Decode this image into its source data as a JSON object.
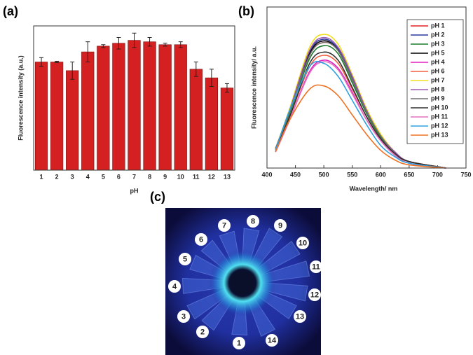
{
  "chart_data": [
    {
      "type": "bar",
      "panel_label": "(a)",
      "xlabel": "pH",
      "ylabel": "Fluorescence intensity (a.u.)",
      "categories": [
        "1",
        "2",
        "3",
        "4",
        "5",
        "6",
        "7",
        "8",
        "9",
        "10",
        "11",
        "12",
        "13"
      ],
      "values": [
        0.75,
        0.75,
        0.69,
        0.82,
        0.86,
        0.88,
        0.9,
        0.89,
        0.87,
        0.87,
        0.7,
        0.64,
        0.57
      ],
      "errors": [
        0.03,
        0.005,
        0.06,
        0.07,
        0.01,
        0.04,
        0.05,
        0.03,
        0.01,
        0.02,
        0.05,
        0.06,
        0.03
      ],
      "color": "#d42020",
      "ylim": [
        0,
        1
      ]
    },
    {
      "type": "line",
      "panel_label": "(b)",
      "xlabel": "Wavelength/ nm",
      "ylabel": "Fluorescence intensity/ a.u.",
      "x": [
        415,
        440,
        475,
        500,
        525,
        550,
        575,
        600,
        625,
        650,
        715
      ],
      "xlim": [
        400,
        750
      ],
      "xticks": [
        400,
        450,
        500,
        550,
        600,
        650,
        700,
        750
      ],
      "ylim": [
        0,
        1
      ],
      "legend": "upper right",
      "series": [
        {
          "name": "pH 1",
          "color": "#e02020",
          "values": [
            0.12,
            0.35,
            0.7,
            0.78,
            0.73,
            0.55,
            0.35,
            0.2,
            0.09,
            0.04,
            0
          ]
        },
        {
          "name": "pH 2",
          "color": "#2a3a9a",
          "values": [
            0.12,
            0.36,
            0.72,
            0.8,
            0.74,
            0.56,
            0.36,
            0.2,
            0.1,
            0.04,
            0
          ]
        },
        {
          "name": "pH 3",
          "color": "#1a7a2a",
          "values": [
            0.11,
            0.34,
            0.68,
            0.76,
            0.71,
            0.53,
            0.34,
            0.19,
            0.09,
            0.04,
            0
          ]
        },
        {
          "name": "pH 5",
          "color": "#000000",
          "values": [
            0.12,
            0.36,
            0.71,
            0.79,
            0.73,
            0.55,
            0.36,
            0.2,
            0.09,
            0.04,
            0
          ]
        },
        {
          "name": "pH 4",
          "color": "#e020c0",
          "values": [
            0.1,
            0.3,
            0.6,
            0.67,
            0.62,
            0.47,
            0.3,
            0.17,
            0.08,
            0.03,
            0
          ]
        },
        {
          "name": "pH 6",
          "color": "#f06040",
          "values": [
            0.11,
            0.32,
            0.63,
            0.7,
            0.65,
            0.49,
            0.32,
            0.18,
            0.08,
            0.04,
            0
          ]
        },
        {
          "name": "pH 7",
          "color": "#f0e020",
          "values": [
            0.12,
            0.37,
            0.75,
            0.83,
            0.77,
            0.58,
            0.37,
            0.21,
            0.1,
            0.04,
            0
          ]
        },
        {
          "name": "pH 8",
          "color": "#9a5ab0",
          "values": [
            0.12,
            0.36,
            0.73,
            0.81,
            0.75,
            0.57,
            0.36,
            0.2,
            0.1,
            0.04,
            0
          ]
        },
        {
          "name": "pH 9",
          "color": "#707070",
          "values": [
            0.12,
            0.35,
            0.7,
            0.78,
            0.73,
            0.55,
            0.35,
            0.2,
            0.09,
            0.04,
            0
          ]
        },
        {
          "name": "pH 10",
          "color": "#303030",
          "values": [
            0.11,
            0.32,
            0.65,
            0.72,
            0.67,
            0.5,
            0.32,
            0.18,
            0.09,
            0.04,
            0
          ]
        },
        {
          "name": "pH 11",
          "color": "#e070c0",
          "values": [
            0.1,
            0.3,
            0.59,
            0.66,
            0.61,
            0.46,
            0.3,
            0.17,
            0.08,
            0.03,
            0
          ]
        },
        {
          "name": "pH 12",
          "color": "#30a0e0",
          "values": [
            0.11,
            0.36,
            0.63,
            0.65,
            0.57,
            0.42,
            0.27,
            0.14,
            0.07,
            0.03,
            0
          ]
        },
        {
          "name": "pH 13",
          "color": "#f07020",
          "values": [
            0.1,
            0.3,
            0.49,
            0.51,
            0.45,
            0.33,
            0.21,
            0.11,
            0.05,
            0.02,
            0
          ]
        }
      ]
    }
  ],
  "photo": {
    "panel_label": "(c)",
    "tube_labels": [
      "1",
      "2",
      "3",
      "4",
      "5",
      "6",
      "7",
      "8",
      "9",
      "10",
      "11",
      "12",
      "13",
      "14"
    ]
  }
}
